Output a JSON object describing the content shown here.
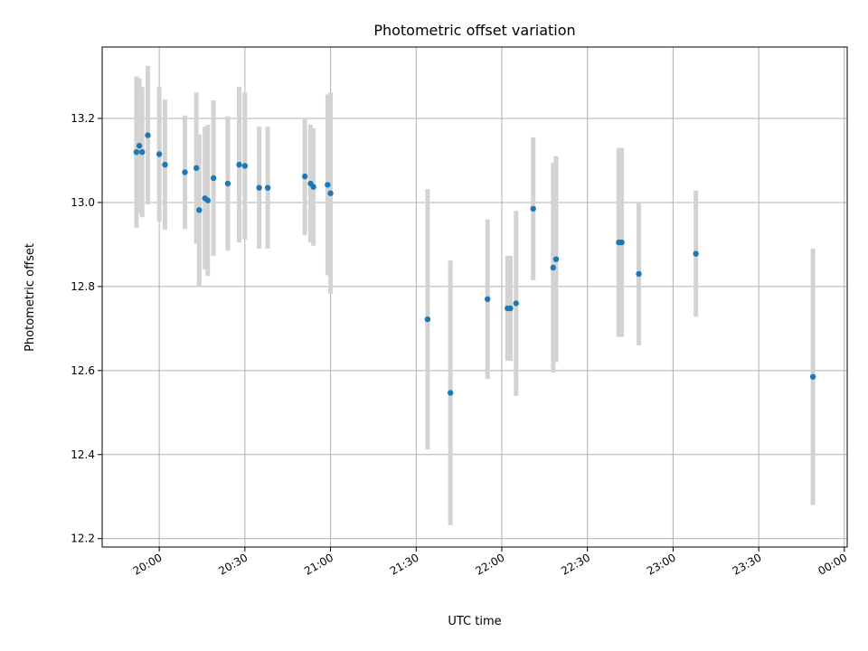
{
  "chart_data": {
    "type": "scatter",
    "title": "Photometric offset variation",
    "xlabel": "UTC time",
    "ylabel": "Photometric offset",
    "x_unit": "UTC time (HH:MM)",
    "xlim": [
      "19:40",
      "00:01"
    ],
    "ylim": [
      12.18,
      13.37
    ],
    "grid": true,
    "x_ticks": [
      "20:00",
      "20:30",
      "21:00",
      "21:30",
      "22:00",
      "22:30",
      "23:00",
      "23:30",
      "00:00"
    ],
    "y_ticks": [
      "12.2",
      "12.4",
      "12.6",
      "12.8",
      "13.0",
      "13.2"
    ],
    "colors": {
      "point": "#1f77b4",
      "errorbar": "#d3d3d3",
      "grid": "#b0b0b0"
    },
    "series": [
      {
        "points": [
          {
            "x": "19:52",
            "y": 13.12,
            "err": 0.18
          },
          {
            "x": "19:53",
            "y": 13.135,
            "err": 0.16
          },
          {
            "x": "19:54",
            "y": 13.12,
            "err": 0.155
          },
          {
            "x": "19:56",
            "y": 13.16,
            "err": 0.165
          },
          {
            "x": "20:00",
            "y": 13.115,
            "err": 0.16
          },
          {
            "x": "20:02",
            "y": 13.09,
            "err": 0.155
          },
          {
            "x": "20:09",
            "y": 13.072,
            "err": 0.135
          },
          {
            "x": "20:13",
            "y": 13.082,
            "err": 0.18
          },
          {
            "x": "20:14",
            "y": 12.982,
            "err": 0.18
          },
          {
            "x": "20:16",
            "y": 13.01,
            "err": 0.17
          },
          {
            "x": "20:17",
            "y": 13.005,
            "err": 0.18
          },
          {
            "x": "20:19",
            "y": 13.058,
            "err": 0.185
          },
          {
            "x": "20:24",
            "y": 13.045,
            "err": 0.16
          },
          {
            "x": "20:28",
            "y": 13.09,
            "err": 0.185
          },
          {
            "x": "20:30",
            "y": 13.087,
            "err": 0.175
          },
          {
            "x": "20:35",
            "y": 13.035,
            "err": 0.145
          },
          {
            "x": "20:38",
            "y": 13.035,
            "err": 0.145
          },
          {
            "x": "20:51",
            "y": 13.062,
            "err": 0.14
          },
          {
            "x": "20:53",
            "y": 13.045,
            "err": 0.14
          },
          {
            "x": "20:54",
            "y": 13.037,
            "err": 0.14
          },
          {
            "x": "20:59",
            "y": 13.042,
            "err": 0.215
          },
          {
            "x": "21:00",
            "y": 13.022,
            "err": 0.24
          },
          {
            "x": "21:34",
            "y": 12.722,
            "err": 0.31
          },
          {
            "x": "21:42",
            "y": 12.547,
            "err": 0.315
          },
          {
            "x": "21:55",
            "y": 12.77,
            "err": 0.19
          },
          {
            "x": "22:02",
            "y": 12.748,
            "err": 0.125
          },
          {
            "x": "22:03",
            "y": 12.748,
            "err": 0.125
          },
          {
            "x": "22:05",
            "y": 12.76,
            "err": 0.22
          },
          {
            "x": "22:11",
            "y": 12.985,
            "err": 0.17
          },
          {
            "x": "22:18",
            "y": 12.845,
            "err": 0.25
          },
          {
            "x": "22:19",
            "y": 12.865,
            "err": 0.245
          },
          {
            "x": "22:41",
            "y": 12.905,
            "err": 0.225
          },
          {
            "x": "22:42",
            "y": 12.905,
            "err": 0.225
          },
          {
            "x": "22:48",
            "y": 12.83,
            "err": 0.17
          },
          {
            "x": "23:08",
            "y": 12.878,
            "err": 0.15
          },
          {
            "x": "23:49",
            "y": 12.585,
            "err": 0.305
          }
        ]
      }
    ]
  }
}
